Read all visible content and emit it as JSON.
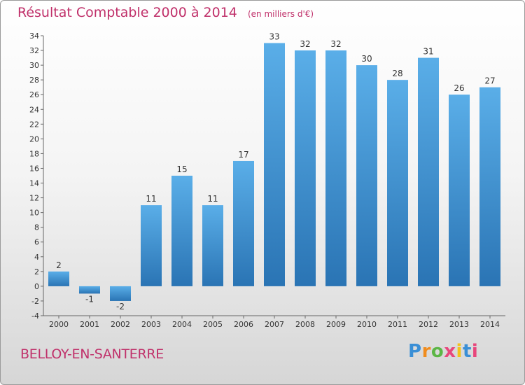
{
  "title": "Résultat Comptable 2000 à 2014",
  "unit_note": "(en milliers d'€)",
  "commune": "BELLOY-EN-SANTERRE",
  "logo": {
    "letters": [
      "P",
      "r",
      "o",
      "x",
      "i",
      "t",
      "i"
    ],
    "colors": [
      "#3a8fd6",
      "#f08c1e",
      "#5cb646",
      "#e8467c",
      "#f4c21a",
      "#3a8fd6",
      "#e8467c"
    ]
  },
  "colors": {
    "title": "#c0306a",
    "bar_light": "#5aaee8",
    "bar_dark": "#2a74b4"
  },
  "chart_data": {
    "type": "bar",
    "categories": [
      "2000",
      "2001",
      "2002",
      "2003",
      "2004",
      "2005",
      "2006",
      "2007",
      "2008",
      "2009",
      "2010",
      "2011",
      "2012",
      "2013",
      "2014"
    ],
    "values": [
      2,
      -1,
      -2,
      11,
      15,
      11,
      17,
      33,
      32,
      32,
      30,
      28,
      31,
      26,
      27
    ],
    "ylim": [
      -4,
      34
    ],
    "yticks": [
      -4,
      -2,
      0,
      2,
      4,
      6,
      8,
      10,
      12,
      14,
      16,
      18,
      20,
      22,
      24,
      26,
      28,
      30,
      32,
      34
    ],
    "grid": false,
    "title": "Résultat Comptable 2000 à 2014",
    "xlabel": "",
    "ylabel": ""
  }
}
